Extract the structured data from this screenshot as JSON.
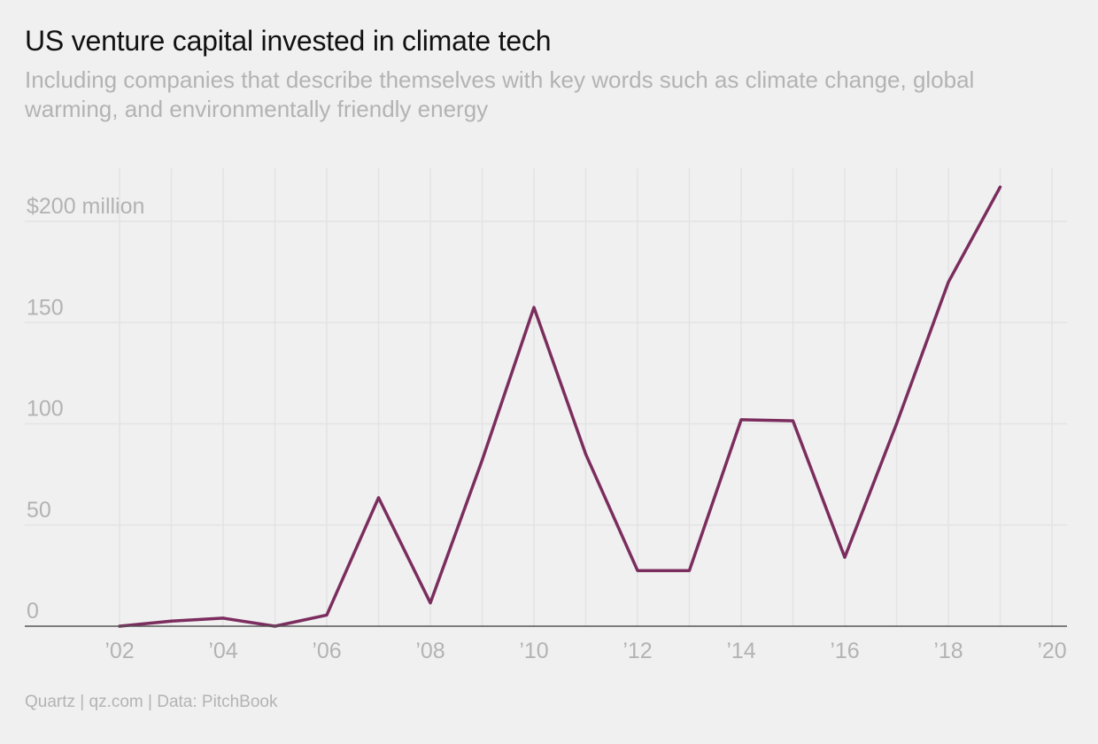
{
  "title": "US venture capital invested in climate tech",
  "subtitle": "Including companies that describe themselves with key words such as climate change, global warming, and environmentally friendly energy",
  "source": "Quartz | qz.com | Data: PitchBook",
  "colors": {
    "background": "#f0f0f0",
    "line": "#7b2d5e",
    "grid": "#e3e3e3",
    "axis": "#555555",
    "tick_text": "#b3b3b3"
  },
  "chart_data": {
    "type": "line",
    "title": "US venture capital invested in climate tech",
    "subtitle": "Including companies that describe themselves with key words such as climate change, global warming, and environmentally friendly energy",
    "xlabel": "",
    "ylabel": "",
    "xlim": [
      2002,
      2020
    ],
    "ylim": [
      0,
      200
    ],
    "x_ticks": [
      2002,
      2004,
      2006,
      2008,
      2010,
      2012,
      2014,
      2016,
      2018,
      2020
    ],
    "x_tick_labels": [
      "’02",
      "’04",
      "’06",
      "’08",
      "’10",
      "’12",
      "’14",
      "’16",
      "’18",
      "’20"
    ],
    "y_ticks": [
      0,
      50,
      100,
      150,
      200
    ],
    "y_tick_labels": [
      "0",
      "50",
      "100",
      "150",
      "$200 million"
    ],
    "grid": true,
    "series": [
      {
        "x": [
          2002,
          2003,
          2004,
          2005,
          2006,
          2007,
          2008,
          2009,
          2010,
          2011,
          2012,
          2013,
          2014,
          2015,
          2016,
          2017,
          2018,
          2019
        ],
        "values": [
          0,
          2.5,
          4,
          0,
          5.5,
          63.5,
          11.5,
          82,
          157.5,
          85,
          27.5,
          27.5,
          102,
          101.5,
          34,
          100,
          170,
          217
        ]
      }
    ]
  }
}
